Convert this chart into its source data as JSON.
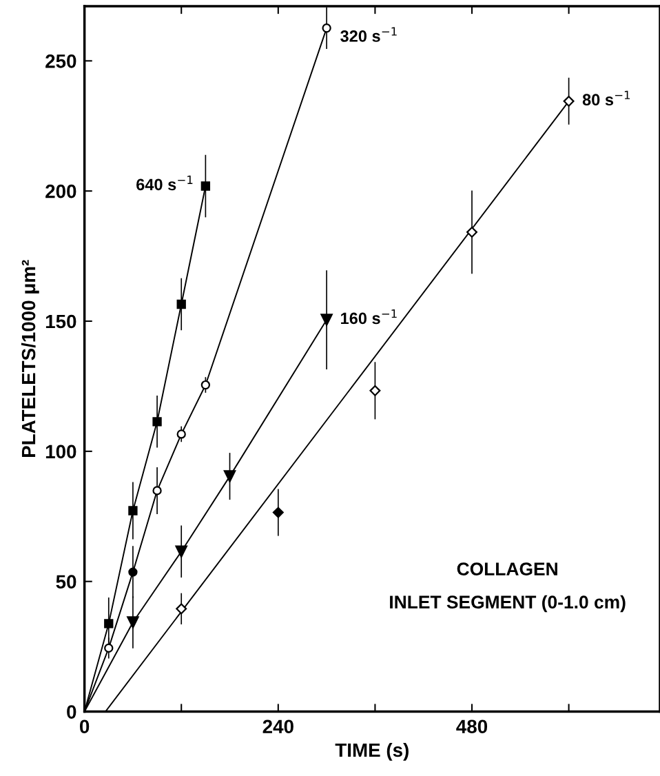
{
  "chart_data": {
    "type": "scatter",
    "xlabel": "TIME (s)",
    "ylabel": "PLATELETS/1000 μm²",
    "xlim": [
      0,
      713
    ],
    "ylim": [
      0,
      271
    ],
    "xticks": [
      0,
      {
        "value": 120,
        "label": null
      },
      240,
      {
        "value": 360,
        "label": null
      },
      480,
      {
        "value": 600,
        "label": null
      }
    ],
    "yticks": [
      0,
      50,
      100,
      150,
      200,
      250
    ],
    "grid": false,
    "annotations": [
      "COLLAGEN",
      "INLET SEGMENT (0-1.0 cm)"
    ],
    "series": [
      {
        "name": "640 s$^{−1}$",
        "marker": "square",
        "color": "#000000",
        "colors": [
          "#000000",
          "#000000",
          "#000000",
          "#000000",
          "#000000"
        ],
        "x": [
          30,
          60,
          90,
          120,
          150
        ],
        "values": [
          33.8,
          77.2,
          111.4,
          156.5,
          201.9
        ],
        "errors": [
          10,
          11,
          10,
          10,
          12
        ]
      },
      {
        "name": "320 s$^{−1}$",
        "marker": "circle",
        "color": "#000000",
        "colors": [
          "#ffffff",
          "#000000",
          "#ffffff",
          "#ffffff",
          "#ffffff",
          "#ffffff"
        ],
        "x": [
          30,
          60,
          90,
          120,
          150,
          300
        ],
        "values": [
          24.4,
          53.6,
          84.9,
          106.6,
          125.5,
          262.6
        ],
        "errors": [
          4,
          10,
          9,
          3,
          3,
          8
        ]
      },
      {
        "name": "160 s$^{−1}$",
        "marker": "triangle",
        "color": "#000000",
        "colors": [
          "#000000",
          "#000000",
          "#000000",
          "#000000"
        ],
        "x": [
          60,
          120,
          180,
          300
        ],
        "values": [
          34.3,
          61.5,
          90.4,
          150.5
        ],
        "errors": [
          10,
          10,
          9,
          19
        ]
      },
      {
        "name": "80 s$^{−1}$",
        "marker": "diamond",
        "color": "#000000",
        "colors": [
          "#ffffff",
          "#000000",
          "#ffffff",
          "#ffffff",
          "#ffffff"
        ],
        "x": [
          120,
          240,
          360,
          480,
          600
        ],
        "values": [
          39.5,
          76.5,
          123.3,
          184.2,
          234.5
        ],
        "errors": [
          6,
          9,
          11,
          16,
          9
        ]
      },
      {
        "type": "line",
        "color": "#000000",
        "line_style": "solid",
        "x": [
          0,
          30,
          60,
          90,
          120,
          150
        ],
        "values": [
          0,
          33.8,
          77.2,
          111.4,
          156.5,
          201.9
        ]
      },
      {
        "type": "line",
        "color": "#000000",
        "line_style": "solid",
        "x": [
          0,
          30,
          60,
          90,
          120,
          150,
          300
        ],
        "values": [
          0,
          24.4,
          53.6,
          84.9,
          106.6,
          125.5,
          262.6
        ]
      },
      {
        "type": "line",
        "color": "#000000",
        "line_style": "solid",
        "x": [
          0,
          60,
          120,
          180,
          300
        ],
        "values": [
          0,
          34.3,
          61.5,
          90.4,
          150.5
        ]
      },
      {
        "type": "line",
        "color": "#000000",
        "line_style": "solid",
        "x": [
          26,
          600
        ],
        "values": [
          0,
          234.5
        ]
      }
    ]
  }
}
